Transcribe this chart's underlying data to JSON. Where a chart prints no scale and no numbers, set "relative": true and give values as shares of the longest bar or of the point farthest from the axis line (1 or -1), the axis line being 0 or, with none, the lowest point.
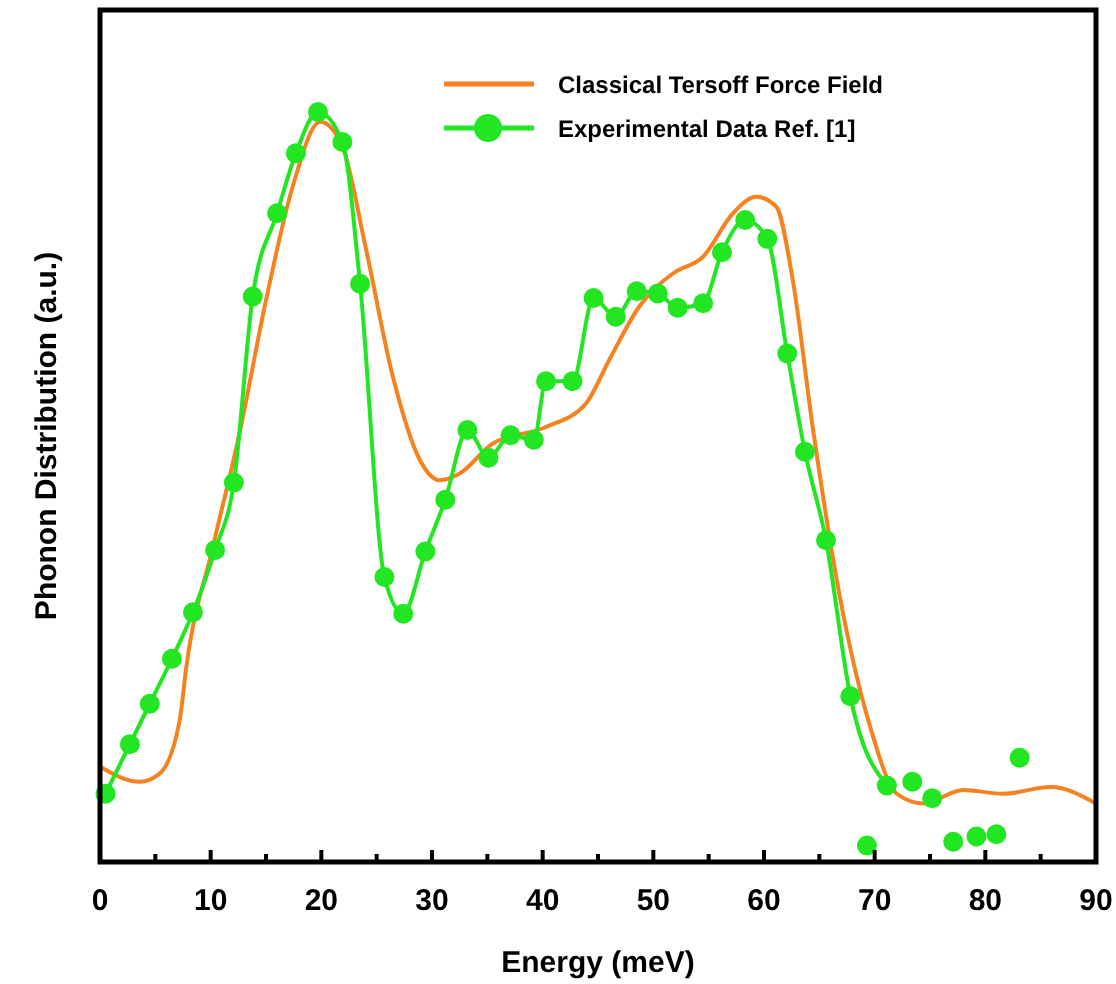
{
  "chart_data": {
    "type": "line",
    "xlabel": "Energy (meV)",
    "ylabel": "Phonon Distribution (a.u.)",
    "relative": true,
    "tick_labels": "x",
    "legend": "top right",
    "grid": false,
    "xlim": [
      0,
      90
    ],
    "xticks": [
      0,
      {
        "value": 5,
        "label": null
      },
      10,
      {
        "value": 15,
        "label": null
      },
      20,
      {
        "value": 25,
        "label": null
      },
      30,
      {
        "value": 35,
        "label": null
      },
      40,
      {
        "value": 45,
        "label": null
      },
      50,
      {
        "value": 55,
        "label": null
      },
      60,
      {
        "value": 65,
        "label": null
      },
      70,
      {
        "value": 75,
        "label": null
      },
      80,
      {
        "value": 85,
        "label": null
      },
      90
    ],
    "series": [
      {
        "name": "Classical Tersoff Force Field",
        "color": "#f5821f",
        "marker": "none",
        "x": [
          0,
          3.6,
          5.4,
          7.2,
          7.8,
          10.2,
          12.6,
          15.0,
          17.4,
          19.9,
          21.9,
          24.0,
          26.4,
          28.9,
          30.7,
          32.5,
          35.5,
          40.3,
          43.9,
          46.0,
          48.7,
          51.8,
          54.5,
          57.2,
          59.3,
          61.1,
          62.6,
          64.4,
          66.8,
          69.6,
          72.0,
          74.4,
          78.0,
          81.6,
          85.9,
          90
        ],
        "values": [
          0.127,
          0.107,
          0.118,
          0.189,
          0.26,
          0.42,
          0.571,
          0.749,
          0.9,
          0.987,
          0.954,
          0.82,
          0.651,
          0.536,
          0.509,
          0.518,
          0.558,
          0.58,
          0.611,
          0.669,
          0.74,
          0.785,
          0.807,
          0.865,
          0.887,
          0.874,
          0.776,
          0.58,
          0.358,
          0.18,
          0.091,
          0.078,
          0.096,
          0.091,
          0.1,
          0.078
        ]
      },
      {
        "name": "Experimental Data Ref. [1]",
        "color": "#22e622",
        "marker": "circle",
        "x": [
          0.5,
          2.7,
          4.5,
          6.5,
          8.4,
          10.4,
          12.1,
          13.8,
          16.0,
          17.7,
          19.7,
          21.9,
          23.5,
          25.7,
          27.4,
          29.4,
          31.2,
          33.2,
          35.1,
          37.1,
          39.2,
          40.3,
          42.7,
          44.6,
          46.6,
          48.5,
          50.4,
          52.2,
          54.5,
          56.2,
          58.3,
          60.3,
          62.1,
          63.7,
          65.6,
          67.8,
          71.1
        ],
        "values": [
          0.091,
          0.157,
          0.211,
          0.271,
          0.333,
          0.416,
          0.506,
          0.754,
          0.865,
          0.945,
          1.0,
          0.96,
          0.771,
          0.38,
          0.331,
          0.414,
          0.483,
          0.576,
          0.539,
          0.569,
          0.563,
          0.641,
          0.641,
          0.752,
          0.727,
          0.761,
          0.758,
          0.739,
          0.745,
          0.813,
          0.856,
          0.831,
          0.678,
          0.547,
          0.429,
          0.221,
          0.102
        ]
      },
      {
        "color": "#22e622",
        "type": "scatter",
        "marker": "circle",
        "x": [
          69.3,
          73.4,
          75.2,
          77.1,
          79.2,
          81.0,
          83.1
        ],
        "values": [
          0.022,
          0.107,
          0.085,
          0.027,
          0.034,
          0.037,
          0.139
        ]
      }
    ]
  }
}
